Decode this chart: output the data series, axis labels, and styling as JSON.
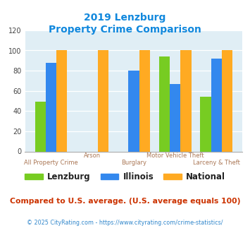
{
  "title_line1": "2019 Lenzburg",
  "title_line2": "Property Crime Comparison",
  "categories": [
    "All Property Crime",
    "Arson",
    "Burglary",
    "Motor Vehicle Theft",
    "Larceny & Theft"
  ],
  "lenzburg": [
    49,
    0,
    0,
    94,
    54
  ],
  "illinois": [
    88,
    0,
    80,
    67,
    92
  ],
  "national": [
    100,
    100,
    100,
    100,
    100
  ],
  "colors": {
    "lenzburg": "#77cc22",
    "illinois": "#3388ee",
    "national": "#ffaa22"
  },
  "ylim": [
    0,
    120
  ],
  "yticks": [
    0,
    20,
    40,
    60,
    80,
    100,
    120
  ],
  "title_color": "#1188dd",
  "xlabel_color": "#aa7755",
  "legend_label_color": "#222222",
  "note_text": "Compared to U.S. average. (U.S. average equals 100)",
  "note_color": "#cc3300",
  "footer_text": "© 2025 CityRating.com - https://www.cityrating.com/crime-statistics/",
  "footer_color": "#3388cc",
  "bg_color": "#ffffff",
  "plot_bg_color": "#e0eef5"
}
